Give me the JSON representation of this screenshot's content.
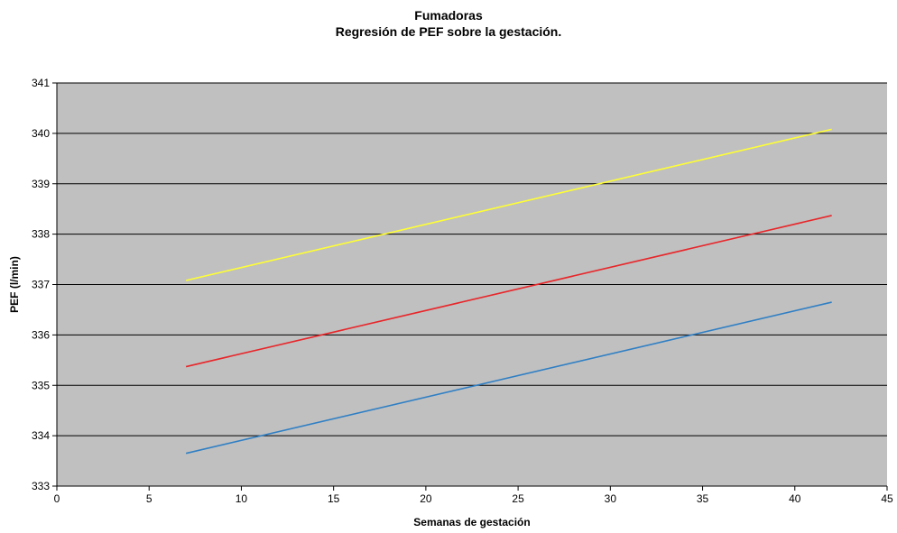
{
  "chart_data": {
    "type": "line",
    "title": "Fumadoras",
    "subtitle": "Regresión de PEF sobre la gestación.",
    "xlabel": "Semanas de gestación",
    "ylabel": "PEF (l/min)",
    "xlim": [
      0,
      45
    ],
    "ylim": [
      333,
      341
    ],
    "xticks": [
      0,
      5,
      10,
      15,
      20,
      25,
      30,
      35,
      40,
      45
    ],
    "yticks": [
      333,
      334,
      335,
      336,
      337,
      338,
      339,
      340,
      341
    ],
    "grid": "horizontal",
    "legend": "none",
    "plot_background": "#c0c0c0",
    "series": [
      {
        "color": "#ffff33",
        "x": [
          7,
          42
        ],
        "y": [
          337.08,
          340.08
        ]
      },
      {
        "color": "#e8262a",
        "x": [
          7,
          42
        ],
        "y": [
          335.37,
          338.37
        ]
      },
      {
        "color": "#2f7fc4",
        "x": [
          7,
          42
        ],
        "y": [
          333.65,
          336.65
        ]
      }
    ]
  }
}
